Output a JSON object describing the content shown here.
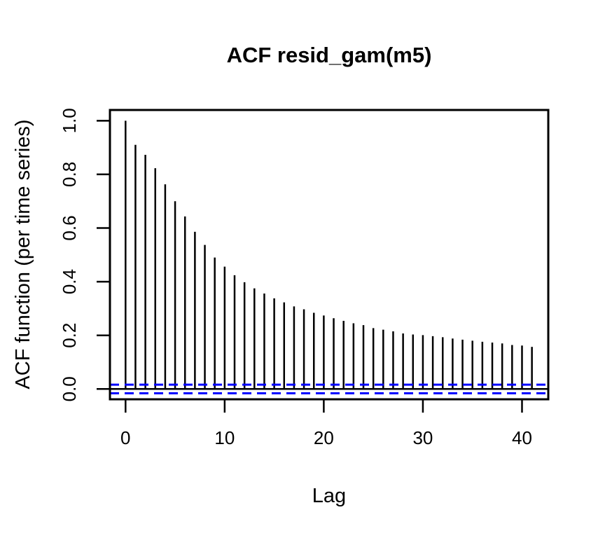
{
  "chart_data": {
    "type": "bar",
    "variant": "acf-stick-plot",
    "title": "ACF resid_gam(m5)",
    "xlabel": "Lag",
    "ylabel": "ACF function (per time series)",
    "x": [
      0,
      1,
      2,
      3,
      4,
      5,
      6,
      7,
      8,
      9,
      10,
      11,
      12,
      13,
      14,
      15,
      16,
      17,
      18,
      19,
      20,
      21,
      22,
      23,
      24,
      25,
      26,
      27,
      28,
      29,
      30,
      31,
      32,
      33,
      34,
      35,
      36,
      37,
      38,
      39,
      40,
      41
    ],
    "values": [
      1.0,
      0.91,
      0.873,
      0.823,
      0.763,
      0.7,
      0.643,
      0.586,
      0.537,
      0.49,
      0.456,
      0.424,
      0.398,
      0.375,
      0.356,
      0.338,
      0.323,
      0.308,
      0.297,
      0.284,
      0.274,
      0.264,
      0.254,
      0.245,
      0.238,
      0.227,
      0.221,
      0.215,
      0.207,
      0.203,
      0.201,
      0.197,
      0.193,
      0.188,
      0.184,
      0.18,
      0.176,
      0.173,
      0.17,
      0.164,
      0.162,
      0.157
    ],
    "xticks": [
      0,
      10,
      20,
      30,
      40
    ],
    "xtick_labels": [
      "0",
      "10",
      "20",
      "30",
      "40"
    ],
    "yticks": [
      0.0,
      0.2,
      0.4,
      0.6,
      0.8,
      1.0
    ],
    "ytick_labels": [
      "0.0",
      "0.2",
      "0.4",
      "0.6",
      "0.8",
      "1.0"
    ],
    "xlim": [
      -1.575,
      42.65
    ],
    "ylim": [
      -0.0384,
      1.04
    ],
    "zero_line": 0,
    "confidence_bounds": {
      "upper": 0.016,
      "lower": -0.016,
      "line_style": "dashed",
      "color": "#0000ff"
    },
    "grid": "off",
    "legend": "none",
    "bar_color": "#000000",
    "axis_color": "#000000",
    "background_color": "#ffffff"
  }
}
